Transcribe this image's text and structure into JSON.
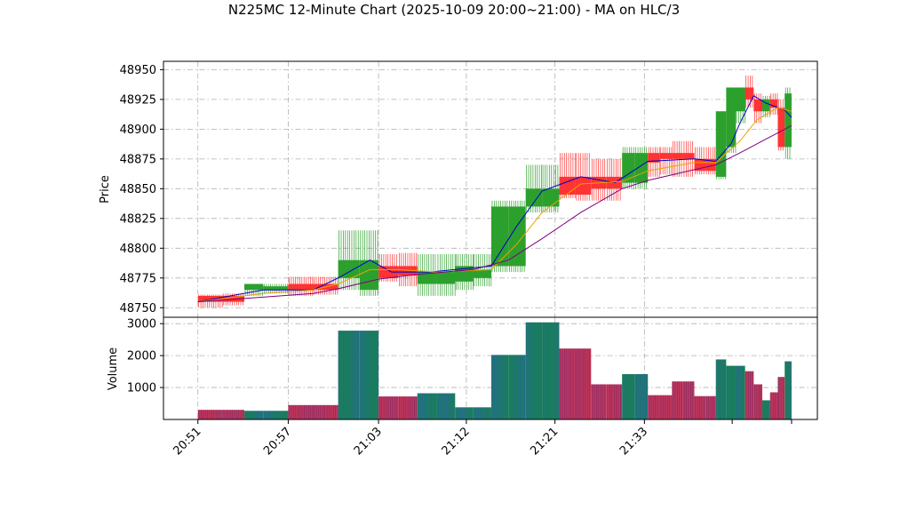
{
  "chart_data": {
    "type": "candlestick",
    "title": "N225MC 12-Minute Chart (2025-10-09 20:00~21:00) - MA on HLC/3",
    "price_panel": {
      "ylabel": "Price",
      "ylim": [
        48742,
        48957
      ],
      "yticks": [
        48750,
        48775,
        48800,
        48825,
        48850,
        48875,
        48900,
        48925,
        48950
      ]
    },
    "volume_panel": {
      "ylabel": "Volume",
      "ylim": [
        0,
        3200
      ],
      "yticks": [
        1000,
        2000,
        3000
      ]
    },
    "x_ticks": [
      "20:51",
      "20:57",
      "21:03",
      "21:12",
      "21:21",
      "21:33"
    ],
    "grid": true,
    "colors": {
      "up": "#2ca02c",
      "down": "#ff3333",
      "ma_fast": "#0000cc",
      "ma_mid": "#e8a400",
      "ma_slow": "#800080",
      "vol_up": "#1a7f5a",
      "vol_down": "#c0365a"
    },
    "bars": [
      {
        "start": 20.0,
        "end": 22.9,
        "open": 48760,
        "high": 48761,
        "low": 48750,
        "close": 48755,
        "volume": 300
      },
      {
        "start": 22.9,
        "end": 25.4,
        "open": 48760,
        "high": 48762,
        "low": 48752,
        "close": 48755,
        "volume": 300
      },
      {
        "start": 25.4,
        "end": 27.6,
        "open": 48765,
        "high": 48770,
        "low": 48760,
        "close": 48770,
        "volume": 270
      },
      {
        "start": 27.6,
        "end": 30.5,
        "open": 48765,
        "high": 48770,
        "low": 48762,
        "close": 48768,
        "volume": 270
      },
      {
        "start": 30.5,
        "end": 33.4,
        "open": 48770,
        "high": 48776,
        "low": 48760,
        "close": 48765,
        "volume": 450
      },
      {
        "start": 33.4,
        "end": 36.3,
        "open": 48770,
        "high": 48776,
        "low": 48761,
        "close": 48765,
        "volume": 450
      },
      {
        "start": 36.3,
        "end": 38.8,
        "open": 48775,
        "high": 48815,
        "low": 48765,
        "close": 48790,
        "volume": 2780
      },
      {
        "start": 38.8,
        "end": 41.0,
        "open": 48765,
        "high": 48815,
        "low": 48760,
        "close": 48790,
        "volume": 2780
      },
      {
        "start": 41.0,
        "end": 43.3,
        "open": 48785,
        "high": 48795,
        "low": 48772,
        "close": 48775,
        "volume": 720
      },
      {
        "start": 43.3,
        "end": 45.5,
        "open": 48785,
        "high": 48796,
        "low": 48768,
        "close": 48777,
        "volume": 720
      },
      {
        "start": 45.5,
        "end": 47.8,
        "open": 48770,
        "high": 48795,
        "low": 48760,
        "close": 48780,
        "volume": 820
      },
      {
        "start": 47.8,
        "end": 49.9,
        "open": 48770,
        "high": 48795,
        "low": 48760,
        "close": 48780,
        "volume": 820
      },
      {
        "start": 49.9,
        "end": 52.0,
        "open": 48772,
        "high": 48795,
        "low": 48765,
        "close": 48785,
        "volume": 380
      },
      {
        "start": 52.0,
        "end": 54.1,
        "open": 48775,
        "high": 48795,
        "low": 48768,
        "close": 48782,
        "volume": 380
      },
      {
        "start": 54.1,
        "end": 56.1,
        "open": 48785,
        "high": 48840,
        "low": 48780,
        "close": 48835,
        "volume": 2020
      },
      {
        "start": 56.1,
        "end": 58.1,
        "open": 48785,
        "high": 48840,
        "low": 48780,
        "close": 48835,
        "volume": 2020
      },
      {
        "start": 58.1,
        "end": 60.0,
        "open": 48835,
        "high": 48870,
        "low": 48830,
        "close": 48850,
        "volume": 3040
      },
      {
        "start": 60.0,
        "end": 62.0,
        "open": 48835,
        "high": 48870,
        "low": 48830,
        "close": 48850,
        "volume": 3040
      },
      {
        "start": 62.0,
        "end": 63.9,
        "open": 48860,
        "high": 48880,
        "low": 48842,
        "close": 48845,
        "volume": 2220
      },
      {
        "start": 63.9,
        "end": 65.7,
        "open": 48860,
        "high": 48880,
        "low": 48840,
        "close": 48845,
        "volume": 2220
      },
      {
        "start": 65.7,
        "end": 67.5,
        "open": 48860,
        "high": 48875,
        "low": 48840,
        "close": 48850,
        "volume": 1100
      },
      {
        "start": 67.5,
        "end": 69.3,
        "open": 48860,
        "high": 48875,
        "low": 48840,
        "close": 48850,
        "volume": 1100
      },
      {
        "start": 69.3,
        "end": 70.8,
        "open": 48855,
        "high": 48885,
        "low": 48850,
        "close": 48880,
        "volume": 1420
      },
      {
        "start": 70.8,
        "end": 72.3,
        "open": 48855,
        "high": 48885,
        "low": 48850,
        "close": 48880,
        "volume": 1420
      },
      {
        "start": 72.3,
        "end": 73.7,
        "open": 48880,
        "high": 48885,
        "low": 48860,
        "close": 48872,
        "volume": 760
      },
      {
        "start": 73.7,
        "end": 75.1,
        "open": 48880,
        "high": 48885,
        "low": 48862,
        "close": 48875,
        "volume": 760
      },
      {
        "start": 75.1,
        "end": 76.4,
        "open": 48880,
        "high": 48890,
        "low": 48860,
        "close": 48875,
        "volume": 1190
      },
      {
        "start": 76.4,
        "end": 77.7,
        "open": 48880,
        "high": 48890,
        "low": 48860,
        "close": 48875,
        "volume": 1190
      },
      {
        "start": 77.7,
        "end": 79.0,
        "open": 48875,
        "high": 48885,
        "low": 48862,
        "close": 48865,
        "volume": 730
      },
      {
        "start": 79.0,
        "end": 80.2,
        "open": 48875,
        "high": 48885,
        "low": 48862,
        "close": 48865,
        "volume": 730
      },
      {
        "start": 80.2,
        "end": 81.4,
        "open": 48860,
        "high": 48915,
        "low": 48858,
        "close": 48915,
        "volume": 1880
      },
      {
        "start": 81.4,
        "end": 82.5,
        "open": 48885,
        "high": 48935,
        "low": 48880,
        "close": 48935,
        "volume": 1680
      },
      {
        "start": 82.5,
        "end": 83.6,
        "open": 48915,
        "high": 48935,
        "low": 48905,
        "close": 48935,
        "volume": 1680
      },
      {
        "start": 83.6,
        "end": 84.6,
        "open": 48935,
        "high": 48945,
        "low": 48918,
        "close": 48925,
        "volume": 1510
      },
      {
        "start": 84.6,
        "end": 85.6,
        "open": 48925,
        "high": 48930,
        "low": 48905,
        "close": 48915,
        "volume": 1100
      },
      {
        "start": 85.6,
        "end": 86.5,
        "open": 48915,
        "high": 48928,
        "low": 48910,
        "close": 48925,
        "volume": 600
      },
      {
        "start": 86.5,
        "end": 87.4,
        "open": 48925,
        "high": 48930,
        "low": 48912,
        "close": 48918,
        "volume": 850
      },
      {
        "start": 87.4,
        "end": 88.2,
        "open": 48918,
        "high": 48925,
        "low": 48882,
        "close": 48885,
        "volume": 1330
      },
      {
        "start": 88.2,
        "end": 89.0,
        "open": 48885,
        "high": 48935,
        "low": 48875,
        "close": 48930,
        "volume": 1820
      }
    ],
    "ma_lines": [
      {
        "key": "ma_fast",
        "color": "#0000cc",
        "points": [
          [
            20,
            48755
          ],
          [
            27.6,
            48765
          ],
          [
            33.4,
            48765
          ],
          [
            36.3,
            48775
          ],
          [
            40.0,
            48790
          ],
          [
            42.5,
            48780
          ],
          [
            47.0,
            48780
          ],
          [
            54.1,
            48785
          ],
          [
            57.0,
            48818
          ],
          [
            60.0,
            48848
          ],
          [
            64.5,
            48860
          ],
          [
            68.5,
            48855
          ],
          [
            72.3,
            48873
          ],
          [
            77.7,
            48875
          ],
          [
            80.2,
            48873
          ],
          [
            82.0,
            48888
          ],
          [
            83.0,
            48905
          ],
          [
            84.6,
            48928
          ],
          [
            86.0,
            48922
          ],
          [
            88.2,
            48916
          ],
          [
            89.0,
            48910
          ]
        ]
      },
      {
        "key": "ma_mid",
        "color": "#e8a400",
        "points": [
          [
            20,
            48755
          ],
          [
            27.6,
            48762
          ],
          [
            33.4,
            48765
          ],
          [
            36.3,
            48770
          ],
          [
            40.0,
            48782
          ],
          [
            43.3,
            48782
          ],
          [
            47.8,
            48780
          ],
          [
            54.1,
            48782
          ],
          [
            57.0,
            48803
          ],
          [
            60.0,
            48830
          ],
          [
            64.5,
            48854
          ],
          [
            69.3,
            48856
          ],
          [
            72.3,
            48865
          ],
          [
            77.7,
            48872
          ],
          [
            80.2,
            48872
          ],
          [
            83.0,
            48890
          ],
          [
            85.0,
            48908
          ],
          [
            87.4,
            48918
          ],
          [
            89.0,
            48915
          ]
        ]
      },
      {
        "key": "ma_slow",
        "color": "#800080",
        "points": [
          [
            20,
            48755
          ],
          [
            33.4,
            48762
          ],
          [
            36.3,
            48766
          ],
          [
            41.0,
            48774
          ],
          [
            45.5,
            48778
          ],
          [
            52.0,
            48782
          ],
          [
            56.1,
            48790
          ],
          [
            60.0,
            48808
          ],
          [
            64.5,
            48830
          ],
          [
            69.3,
            48850
          ],
          [
            72.3,
            48857
          ],
          [
            77.7,
            48866
          ],
          [
            80.2,
            48870
          ],
          [
            83.0,
            48880
          ],
          [
            85.6,
            48890
          ],
          [
            88.2,
            48900
          ],
          [
            89.0,
            48903
          ]
        ]
      }
    ],
    "x_tick_positions": [
      20,
      30.5,
      41.0,
      51.2,
      61.5,
      71.9,
      82.1,
      89.0
    ]
  }
}
